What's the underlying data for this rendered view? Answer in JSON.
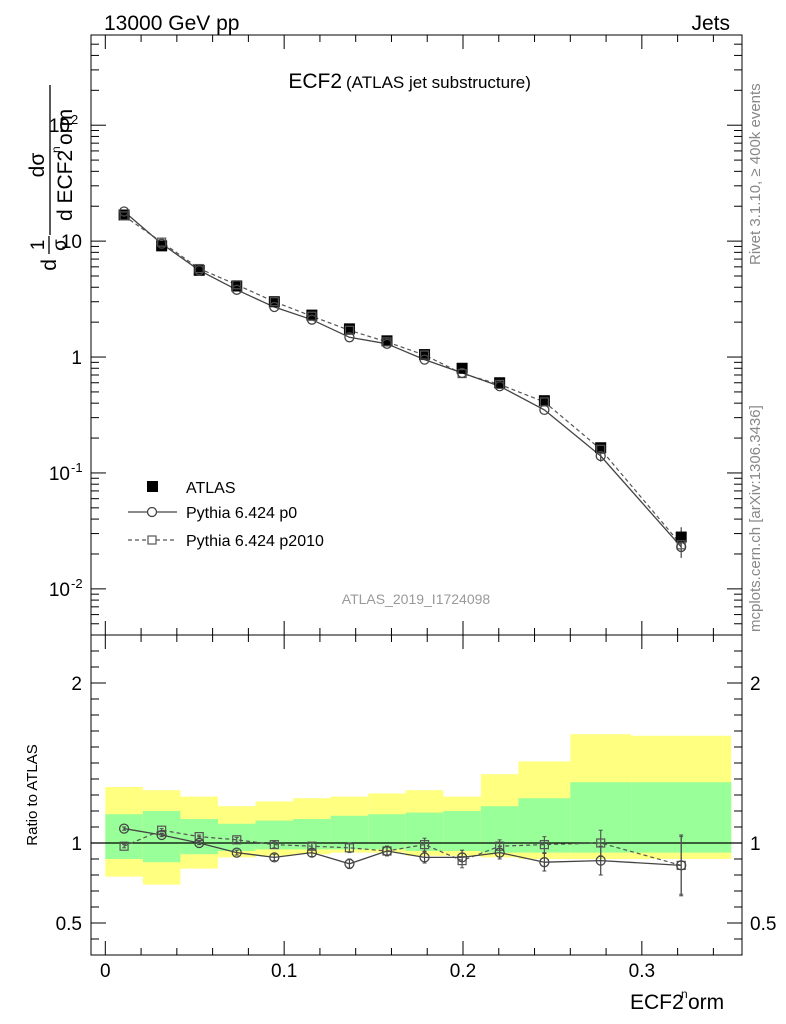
{
  "header": {
    "left": "13000 GeV pp",
    "right": "Jets"
  },
  "side_labels": {
    "rivet": "Rivet 3.1.10, ≥ 400k events",
    "mcplots": "mcplots.cern.ch [arXiv:1306.3436]"
  },
  "chart_data": {
    "type": "line",
    "title": "ECF2",
    "subtitle": "(ATLAS jet substructure)",
    "analysis_id": "ATLAS_2019_I1724098",
    "xlabel": "ECF2^norm",
    "ylabel": "1/σ dσ/d ECF2^norm",
    "ratio_ylabel": "Ratio to ATLAS",
    "xlim": [
      -0.008,
      0.356
    ],
    "ylim": [
      0.004,
      600
    ],
    "ylog": true,
    "ratio_ylim": [
      0.3,
      2.3
    ],
    "legend_position": "lower-left",
    "x_ticks": [
      "0",
      "0.1",
      "0.2",
      "0.3"
    ],
    "y_ticks": [
      "10^-2",
      "10^-1",
      "1",
      "10",
      "10^2"
    ],
    "ratio_y_ticks": [
      "0.5",
      "1",
      "2"
    ],
    "bins": [
      [
        0,
        0.021
      ],
      [
        0.021,
        0.042
      ],
      [
        0.042,
        0.063
      ],
      [
        0.063,
        0.084
      ],
      [
        0.084,
        0.105
      ],
      [
        0.105,
        0.126
      ],
      [
        0.126,
        0.147
      ],
      [
        0.147,
        0.168
      ],
      [
        0.168,
        0.189
      ],
      [
        0.189,
        0.21
      ],
      [
        0.21,
        0.231
      ],
      [
        0.231,
        0.26
      ],
      [
        0.26,
        0.294
      ],
      [
        0.294,
        0.35
      ]
    ],
    "series": [
      {
        "name": "ATLAS",
        "x": [
          0.0105,
          0.0315,
          0.0525,
          0.0735,
          0.0945,
          0.1155,
          0.1365,
          0.1575,
          0.1785,
          0.1995,
          0.2205,
          0.2455,
          0.277,
          0.322
        ],
        "y": [
          16.8,
          9.1,
          5.6,
          4.1,
          3.0,
          2.3,
          1.75,
          1.38,
          1.05,
          0.8,
          0.6,
          0.42,
          0.165,
          0.028
        ]
      },
      {
        "name": "Pythia 6.424 p0",
        "x": [
          0.0105,
          0.0315,
          0.0525,
          0.0735,
          0.0945,
          0.1155,
          0.1365,
          0.1575,
          0.1785,
          0.1995,
          0.2205,
          0.2455,
          0.277,
          0.322
        ],
        "y": [
          18.0,
          9.5,
          5.6,
          3.8,
          2.7,
          2.1,
          1.48,
          1.3,
          0.95,
          0.73,
          0.56,
          0.35,
          0.14,
          0.023
        ]
      },
      {
        "name": "Pythia 6.424 p2010",
        "x": [
          0.0105,
          0.0315,
          0.0525,
          0.0735,
          0.0945,
          0.1155,
          0.1365,
          0.1575,
          0.1785,
          0.1995,
          0.2205,
          0.2455,
          0.277,
          0.322
        ],
        "y": [
          16.5,
          9.8,
          5.8,
          4.2,
          3.0,
          2.25,
          1.7,
          1.35,
          1.04,
          0.72,
          0.58,
          0.41,
          0.16,
          0.024
        ]
      }
    ],
    "ratio": {
      "band_outer": [
        [
          0.79,
          1.35
        ],
        [
          0.74,
          1.33
        ],
        [
          0.84,
          1.29
        ],
        [
          0.91,
          1.23
        ],
        [
          0.92,
          1.26
        ],
        [
          0.93,
          1.28
        ],
        [
          0.94,
          1.29
        ],
        [
          0.94,
          1.31
        ],
        [
          0.92,
          1.33
        ],
        [
          0.92,
          1.29
        ],
        [
          0.91,
          1.43
        ],
        [
          0.9,
          1.51
        ],
        [
          0.9,
          1.68
        ],
        [
          0.9,
          1.67
        ]
      ],
      "band_inner": [
        [
          0.9,
          1.18
        ],
        [
          0.88,
          1.2
        ],
        [
          0.93,
          1.15
        ],
        [
          0.95,
          1.12
        ],
        [
          0.96,
          1.14
        ],
        [
          0.96,
          1.15
        ],
        [
          0.96,
          1.17
        ],
        [
          0.96,
          1.18
        ],
        [
          0.95,
          1.19
        ],
        [
          0.95,
          1.2
        ],
        [
          0.94,
          1.23
        ],
        [
          0.94,
          1.28
        ],
        [
          0.94,
          1.38
        ],
        [
          0.94,
          1.38
        ]
      ],
      "p0": [
        1.09,
        1.05,
        1.0,
        0.94,
        0.91,
        0.94,
        0.87,
        0.95,
        0.91,
        0.91,
        0.94,
        0.88,
        0.89,
        0.86
      ],
      "p0_err": [
        0.01,
        0.01,
        0.01,
        0.015,
        0.02,
        0.025,
        0.03,
        0.03,
        0.035,
        0.045,
        0.04,
        0.055,
        0.09,
        0.19
      ],
      "p2010": [
        0.98,
        1.08,
        1.04,
        1.02,
        0.99,
        0.98,
        0.97,
        0.95,
        0.99,
        0.89,
        0.98,
        0.99,
        1.0,
        0.86
      ],
      "p2010_err": [
        0.01,
        0.01,
        0.01,
        0.015,
        0.02,
        0.02,
        0.03,
        0.03,
        0.04,
        0.045,
        0.04,
        0.05,
        0.08,
        0.18
      ]
    }
  }
}
